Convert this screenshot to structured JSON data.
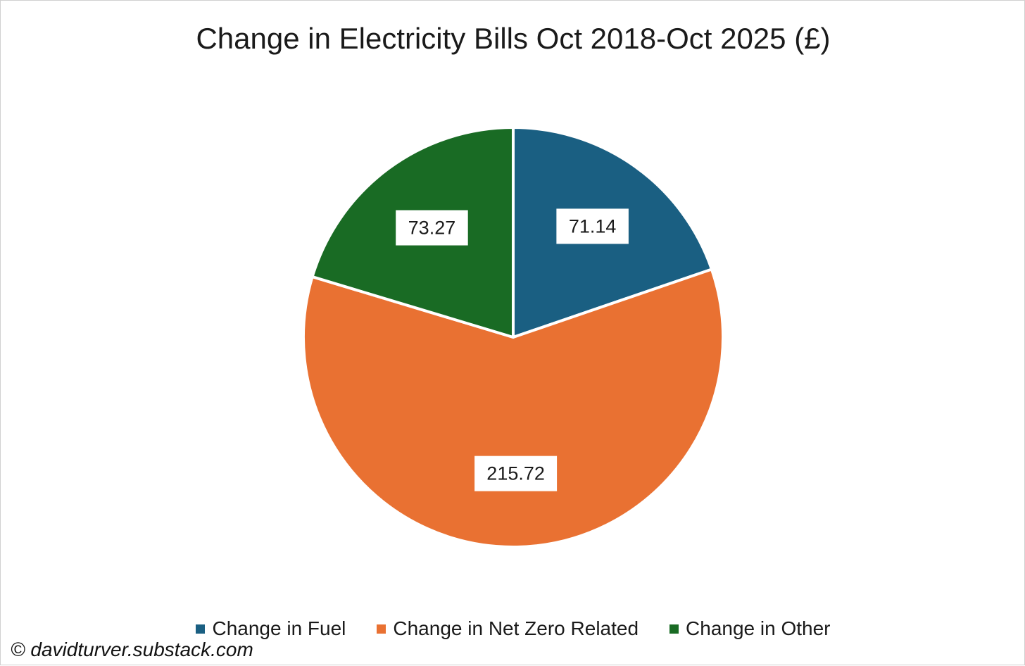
{
  "chart_data": {
    "type": "pie",
    "title": "Change in Electricity Bills Oct 2018-Oct 2025 (£)",
    "categories": [
      "Change in Fuel",
      "Change in Net Zero Related",
      "Change in Other"
    ],
    "values": [
      71.14,
      215.72,
      73.27
    ],
    "labels": [
      "71.14",
      "215.72",
      "73.27"
    ],
    "colors": [
      "#1a5f82",
      "#e97132",
      "#196b24"
    ],
    "start_angle_deg": 0,
    "direction": "clockwise",
    "legend_position": "bottom"
  },
  "credit": "© davidturver.substack.com"
}
